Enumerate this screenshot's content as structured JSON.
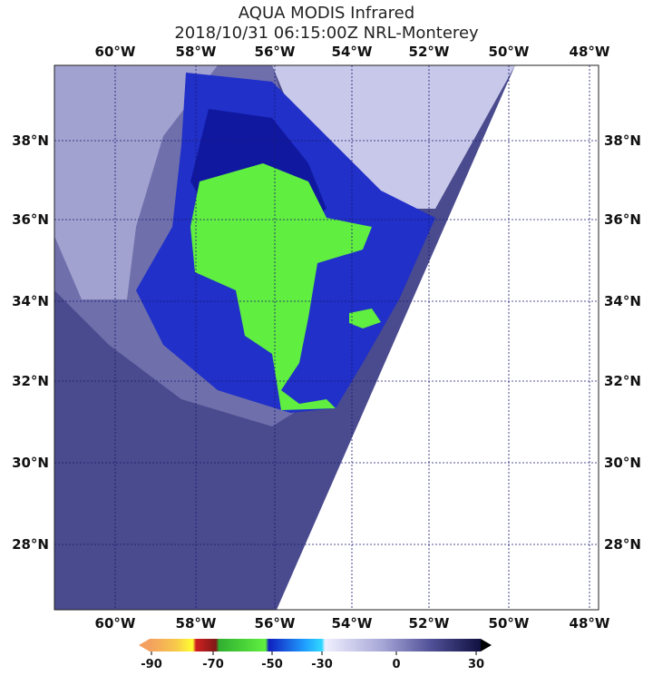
{
  "title": "AQUA MODIS Infrared",
  "subtitle": "2018/10/31 06:15:00Z NRL-Monterey",
  "longitude_labels": [
    "60°W",
    "58°W",
    "56°W",
    "54°W",
    "52°W",
    "50°W",
    "48°W"
  ],
  "latitude_labels": [
    "38°N",
    "36°N",
    "34°N",
    "32°N",
    "30°N",
    "28°N"
  ],
  "colorbar": {
    "ticks": [
      -90,
      -70,
      -50,
      -30,
      0,
      30
    ]
  }
}
